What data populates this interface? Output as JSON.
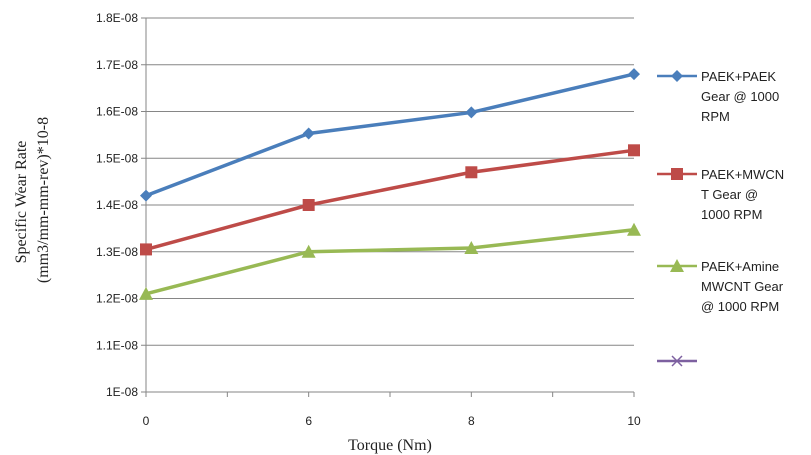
{
  "chart_data": {
    "type": "line",
    "xlabel": "Torque (Nm)",
    "ylabel_lines": [
      "Specific Wear Rate",
      "(mm3/mm-mm-rev)*10-8"
    ],
    "x_ticks": [
      0,
      6,
      8,
      10
    ],
    "y_ticks": [
      "1E-08",
      "1.1E-08",
      "1.2E-08",
      "1.3E-08",
      "1.4E-08",
      "1.5E-08",
      "1.6E-08",
      "1.7E-08",
      "1.8E-08"
    ],
    "ylim": [
      1e-08,
      1.8e-08
    ],
    "grid": "horizontal",
    "legend_position": "right",
    "series": [
      {
        "name_lines": [
          "PAEK+PAEK",
          "Gear @ 1000",
          "RPM"
        ],
        "color": "#4A7EBB",
        "marker": "diamond",
        "values": [
          1.42e-08,
          1.553e-08,
          1.598e-08,
          1.68e-08
        ]
      },
      {
        "name_lines": [
          "PAEK+MWCN",
          "T Gear @",
          "1000 RPM"
        ],
        "color": "#BE4B48",
        "marker": "square",
        "values": [
          1.305e-08,
          1.4e-08,
          1.47e-08,
          1.517e-08
        ]
      },
      {
        "name_lines": [
          "PAEK+Amine",
          "MWCNT Gear",
          "@ 1000 RPM"
        ],
        "color": "#98B954",
        "marker": "triangle",
        "values": [
          1.21e-08,
          1.3e-08,
          1.308e-08,
          1.347e-08
        ]
      },
      {
        "name_lines": [],
        "color": "#7D60A0",
        "marker": "x",
        "values": []
      }
    ]
  }
}
